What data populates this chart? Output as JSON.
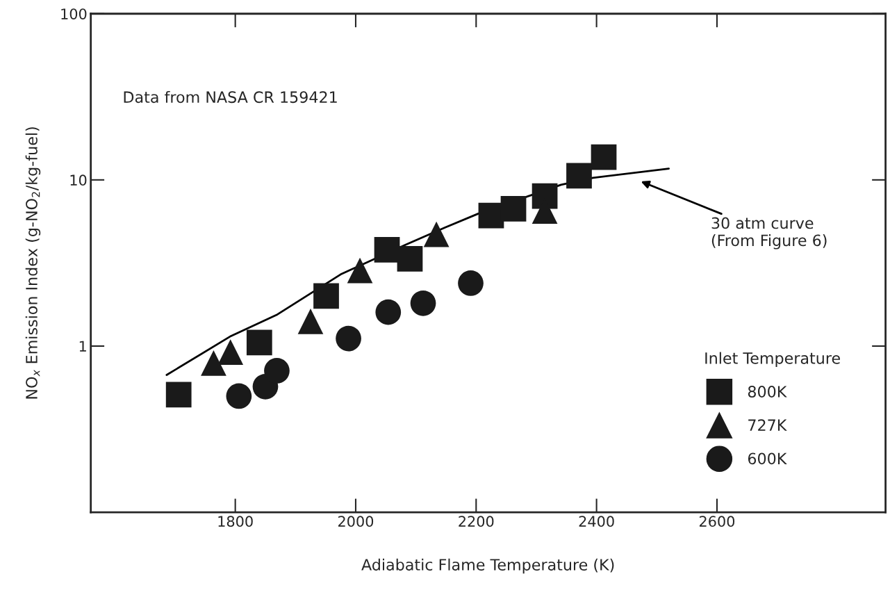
{
  "chart_data": {
    "type": "scatter",
    "xlabel": "Adiabatic Flame Temperature (K)",
    "ylabel": "NO$_{x}$ Emission Index (g-NO$_{2}$/kg-fuel)",
    "legend_title": "Inlet Temperature",
    "legend": "lower right",
    "log": "y",
    "grid": false,
    "xlim": [
      1560,
      2880
    ],
    "xticks": [
      1800,
      2000,
      2200,
      2400,
      2600
    ],
    "ylim": [
      0.1,
      100
    ],
    "yticks": [
      1,
      10,
      100
    ],
    "series": [
      {
        "name": "800K",
        "marker": "square",
        "color": "#1a1a1a",
        "x": [
          1706,
          1840,
          1951,
          2052,
          2090,
          2225,
          2262,
          2314,
          2371,
          2412
        ],
        "values": [
          0.51,
          1.05,
          2.0,
          3.8,
          3.35,
          6.1,
          6.7,
          8.0,
          10.6,
          13.7
        ]
      },
      {
        "name": "727K",
        "marker": "triangle",
        "color": "#1a1a1a",
        "x": [
          1764,
          1792,
          1925,
          2007,
          2134,
          2314
        ],
        "values": [
          0.79,
          0.92,
          1.41,
          2.85,
          4.7,
          6.5
        ]
      },
      {
        "name": "600K",
        "marker": "circle",
        "color": "#1a1a1a",
        "x": [
          1806,
          1850,
          1869,
          1988,
          2054,
          2112,
          2191
        ],
        "values": [
          0.5,
          0.57,
          0.71,
          1.11,
          1.6,
          1.81,
          2.39
        ]
      },
      {
        "type": "line",
        "marker": "none",
        "line_style": "solid",
        "color": "#000000",
        "x": [
          1686,
          1793,
          1870,
          1975,
          2082,
          2148,
          2203,
          2341,
          2394,
          2520
        ],
        "values": [
          0.67,
          1.15,
          1.55,
          2.7,
          4.06,
          5.16,
          6.25,
          9.35,
          10.3,
          11.7
        ]
      }
    ],
    "annotations": [
      "Data from NASA CR 159421",
      "30 atm curve\n(From Figure 6)"
    ]
  }
}
